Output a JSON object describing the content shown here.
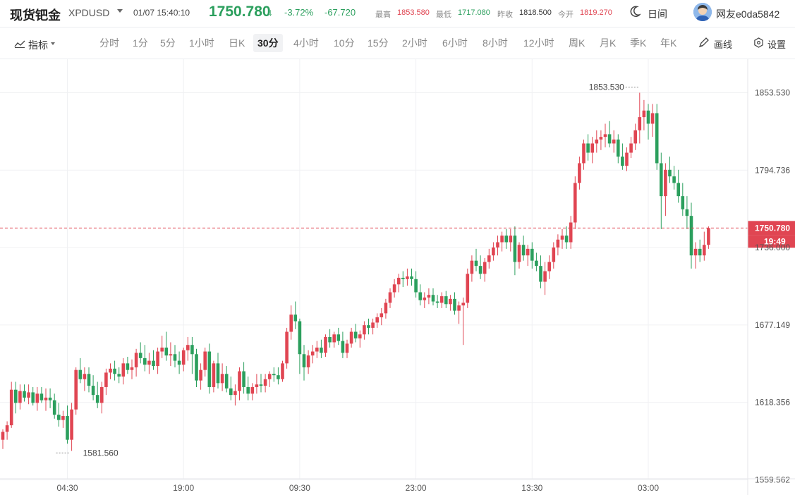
{
  "header": {
    "title": "现货钯金",
    "symbol": "XPDUSD",
    "datetime": "01/07 15:40:10",
    "price": "1750.780",
    "change_pct": "-3.72%",
    "change": "-67.720",
    "high_label": "最高",
    "high": "1853.580",
    "low_label": "最低",
    "low": "1717.080",
    "prev_close_label": "昨收",
    "prev_close": "1818.500",
    "open_label": "今开",
    "open": "1819.270",
    "theme_label": "日间",
    "username": "网友e0da5842"
  },
  "toolbar": {
    "indicator_label": "指标",
    "periods": [
      "分时",
      "1分",
      "5分",
      "1小时",
      "日K",
      "30分",
      "4小时",
      "10分",
      "15分",
      "2小时",
      "6小时",
      "8小时",
      "12小时",
      "周K",
      "月K",
      "季K",
      "年K"
    ],
    "active_period": "30分",
    "draw_label": "画线",
    "settings_label": "设置"
  },
  "colors": {
    "up": "#e04552",
    "down": "#2b9f5d"
  },
  "chart_data": {
    "type": "candlestick",
    "y_ticks": [
      "1853.530",
      "1794.736",
      "1736.000",
      "1677.149",
      "1618.356",
      "1559.562"
    ],
    "y_tick_values": [
      1853.53,
      1794.736,
      1736.0,
      1677.149,
      1618.356,
      1559.562
    ],
    "ylim": [
      1559.562,
      1853.53
    ],
    "x_ticks": [
      "04:30",
      "19:00",
      "09:30",
      "23:00",
      "13:30",
      "03:00"
    ],
    "x_tick_index": [
      15,
      42,
      69,
      96,
      123,
      150
    ],
    "current_price": "1750.780",
    "countdown": "19:49",
    "max_label": "1853.530",
    "min_label": "1581.560",
    "grid": true,
    "candles": [
      [
        1590,
        1598,
        1583,
        1596
      ],
      [
        1596,
        1604,
        1590,
        1601
      ],
      [
        1601,
        1634,
        1599,
        1628
      ],
      [
        1628,
        1634,
        1610,
        1618
      ],
      [
        1618,
        1632,
        1613,
        1627
      ],
      [
        1627,
        1632,
        1619,
        1622
      ],
      [
        1622,
        1632,
        1617,
        1626
      ],
      [
        1626,
        1630,
        1616,
        1618
      ],
      [
        1618,
        1630,
        1612,
        1625
      ],
      [
        1625,
        1630,
        1618,
        1620
      ],
      [
        1620,
        1629,
        1612,
        1622
      ],
      [
        1622,
        1629,
        1614,
        1620
      ],
      [
        1620,
        1625,
        1606,
        1609
      ],
      [
        1609,
        1618,
        1600,
        1605
      ],
      [
        1605,
        1612,
        1599,
        1608
      ],
      [
        1608,
        1616,
        1587,
        1590
      ],
      [
        1590,
        1618,
        1581.56,
        1613
      ],
      [
        1613,
        1645,
        1609,
        1643
      ],
      [
        1643,
        1652,
        1633,
        1636
      ],
      [
        1636,
        1645,
        1627,
        1640
      ],
      [
        1640,
        1645,
        1626,
        1631
      ],
      [
        1631,
        1639,
        1620,
        1624
      ],
      [
        1624,
        1634,
        1614,
        1618
      ],
      [
        1618,
        1634,
        1610,
        1630
      ],
      [
        1630,
        1644,
        1624,
        1641
      ],
      [
        1641,
        1648,
        1636,
        1644
      ],
      [
        1644,
        1650,
        1635,
        1640
      ],
      [
        1640,
        1645,
        1633,
        1638
      ],
      [
        1638,
        1652,
        1632,
        1648
      ],
      [
        1648,
        1653,
        1640,
        1643
      ],
      [
        1643,
        1651,
        1636,
        1645
      ],
      [
        1645,
        1659,
        1638,
        1656
      ],
      [
        1656,
        1664,
        1648,
        1652
      ],
      [
        1652,
        1662,
        1642,
        1647
      ],
      [
        1647,
        1656,
        1640,
        1650
      ],
      [
        1650,
        1658,
        1643,
        1646
      ],
      [
        1646,
        1660,
        1640,
        1657
      ],
      [
        1657,
        1669,
        1652,
        1660
      ],
      [
        1660,
        1672,
        1650,
        1654
      ],
      [
        1654,
        1664,
        1646,
        1655
      ],
      [
        1655,
        1662,
        1645,
        1650
      ],
      [
        1650,
        1657,
        1640,
        1647
      ],
      [
        1647,
        1660,
        1642,
        1658
      ],
      [
        1658,
        1668,
        1650,
        1662
      ],
      [
        1662,
        1668,
        1640,
        1655
      ],
      [
        1655,
        1659,
        1630,
        1635
      ],
      [
        1635,
        1648,
        1628,
        1643
      ],
      [
        1643,
        1660,
        1638,
        1657
      ],
      [
        1657,
        1663,
        1625,
        1630
      ],
      [
        1630,
        1650,
        1626,
        1648
      ],
      [
        1648,
        1656,
        1629,
        1633
      ],
      [
        1633,
        1648,
        1627,
        1640
      ],
      [
        1640,
        1646,
        1626,
        1629
      ],
      [
        1629,
        1638,
        1620,
        1624
      ],
      [
        1624,
        1632,
        1616,
        1627
      ],
      [
        1627,
        1645,
        1620,
        1642
      ],
      [
        1642,
        1649,
        1625,
        1630
      ],
      [
        1630,
        1638,
        1620,
        1625
      ],
      [
        1625,
        1633,
        1620,
        1630
      ],
      [
        1630,
        1640,
        1625,
        1632
      ],
      [
        1632,
        1640,
        1626,
        1631
      ],
      [
        1631,
        1640,
        1626,
        1636
      ],
      [
        1636,
        1642,
        1630,
        1640
      ],
      [
        1640,
        1645,
        1634,
        1639
      ],
      [
        1639,
        1645,
        1632,
        1636
      ],
      [
        1636,
        1650,
        1634,
        1648
      ],
      [
        1648,
        1675,
        1644,
        1672
      ],
      [
        1672,
        1692,
        1666,
        1685
      ],
      [
        1685,
        1695,
        1674,
        1680
      ],
      [
        1680,
        1682,
        1640,
        1655
      ],
      [
        1655,
        1662,
        1635,
        1645
      ],
      [
        1645,
        1658,
        1640,
        1654
      ],
      [
        1654,
        1662,
        1648,
        1657
      ],
      [
        1657,
        1665,
        1652,
        1660
      ],
      [
        1660,
        1666,
        1652,
        1656
      ],
      [
        1656,
        1670,
        1653,
        1668
      ],
      [
        1668,
        1674,
        1660,
        1664
      ],
      [
        1664,
        1672,
        1660,
        1670
      ],
      [
        1670,
        1675,
        1662,
        1665
      ],
      [
        1665,
        1672,
        1652,
        1656
      ],
      [
        1656,
        1666,
        1652,
        1663
      ],
      [
        1663,
        1675,
        1660,
        1672
      ],
      [
        1672,
        1678,
        1664,
        1667
      ],
      [
        1667,
        1673,
        1660,
        1670
      ],
      [
        1670,
        1680,
        1666,
        1677
      ],
      [
        1677,
        1682,
        1670,
        1675
      ],
      [
        1675,
        1682,
        1670,
        1679
      ],
      [
        1679,
        1686,
        1675,
        1683
      ],
      [
        1683,
        1690,
        1677,
        1686
      ],
      [
        1686,
        1697,
        1682,
        1694
      ],
      [
        1694,
        1705,
        1690,
        1702
      ],
      [
        1702,
        1712,
        1698,
        1708
      ],
      [
        1708,
        1716,
        1702,
        1713
      ],
      [
        1713,
        1718,
        1706,
        1712
      ],
      [
        1712,
        1720,
        1707,
        1714
      ],
      [
        1714,
        1720,
        1707,
        1712
      ],
      [
        1712,
        1718,
        1698,
        1702
      ],
      [
        1702,
        1708,
        1692,
        1696
      ],
      [
        1696,
        1702,
        1690,
        1698
      ],
      [
        1698,
        1705,
        1693,
        1700
      ],
      [
        1700,
        1705,
        1692,
        1695
      ],
      [
        1695,
        1700,
        1690,
        1694
      ],
      [
        1694,
        1702,
        1690,
        1699
      ],
      [
        1699,
        1703,
        1690,
        1693
      ],
      [
        1693,
        1700,
        1688,
        1697
      ],
      [
        1697,
        1702,
        1685,
        1688
      ],
      [
        1688,
        1695,
        1678,
        1692
      ],
      [
        1692,
        1698,
        1662,
        1694
      ],
      [
        1694,
        1720,
        1690,
        1716
      ],
      [
        1716,
        1730,
        1710,
        1726
      ],
      [
        1726,
        1735,
        1718,
        1722
      ],
      [
        1722,
        1730,
        1712,
        1716
      ],
      [
        1716,
        1728,
        1710,
        1725
      ],
      [
        1725,
        1735,
        1720,
        1730
      ],
      [
        1730,
        1740,
        1726,
        1736
      ],
      [
        1736,
        1745,
        1730,
        1740
      ],
      [
        1740,
        1748,
        1733,
        1745
      ],
      [
        1745,
        1750,
        1735,
        1740
      ],
      [
        1740,
        1750,
        1733,
        1745
      ],
      [
        1745,
        1752,
        1715,
        1725
      ],
      [
        1725,
        1740,
        1720,
        1738
      ],
      [
        1738,
        1745,
        1726,
        1730
      ],
      [
        1730,
        1738,
        1722,
        1735
      ],
      [
        1735,
        1740,
        1720,
        1726
      ],
      [
        1726,
        1732,
        1718,
        1722
      ],
      [
        1722,
        1730,
        1705,
        1710
      ],
      [
        1710,
        1725,
        1700,
        1718
      ],
      [
        1718,
        1730,
        1712,
        1725
      ],
      [
        1725,
        1740,
        1720,
        1736
      ],
      [
        1736,
        1746,
        1730,
        1742
      ],
      [
        1742,
        1750,
        1735,
        1745
      ],
      [
        1745,
        1752,
        1735,
        1740
      ],
      [
        1740,
        1760,
        1735,
        1755
      ],
      [
        1755,
        1790,
        1750,
        1785
      ],
      [
        1785,
        1805,
        1780,
        1800
      ],
      [
        1800,
        1818,
        1795,
        1815
      ],
      [
        1815,
        1822,
        1802,
        1808
      ],
      [
        1808,
        1820,
        1800,
        1815
      ],
      [
        1815,
        1825,
        1808,
        1818
      ],
      [
        1818,
        1825,
        1810,
        1820
      ],
      [
        1820,
        1830,
        1812,
        1822
      ],
      [
        1822,
        1832,
        1812,
        1815
      ],
      [
        1815,
        1825,
        1808,
        1818
      ],
      [
        1818,
        1822,
        1800,
        1805
      ],
      [
        1805,
        1815,
        1795,
        1798
      ],
      [
        1798,
        1812,
        1794,
        1808
      ],
      [
        1808,
        1820,
        1804,
        1815
      ],
      [
        1815,
        1830,
        1810,
        1825
      ],
      [
        1825,
        1853.53,
        1815,
        1835
      ],
      [
        1835,
        1848,
        1825,
        1840
      ],
      [
        1840,
        1845,
        1818,
        1830
      ],
      [
        1830,
        1845,
        1820,
        1838
      ],
      [
        1838,
        1845,
        1795,
        1800
      ],
      [
        1800,
        1808,
        1750,
        1775
      ],
      [
        1775,
        1800,
        1760,
        1795
      ],
      [
        1795,
        1805,
        1785,
        1790
      ],
      [
        1790,
        1798,
        1780,
        1785
      ],
      [
        1785,
        1795,
        1770,
        1775
      ],
      [
        1775,
        1785,
        1760,
        1765
      ],
      [
        1765,
        1775,
        1750,
        1760
      ],
      [
        1760,
        1770,
        1720,
        1730
      ],
      [
        1730,
        1740,
        1720,
        1735
      ],
      [
        1735,
        1742,
        1725,
        1730
      ],
      [
        1730,
        1748,
        1726,
        1738
      ],
      [
        1738,
        1752,
        1735,
        1750.78
      ]
    ]
  }
}
